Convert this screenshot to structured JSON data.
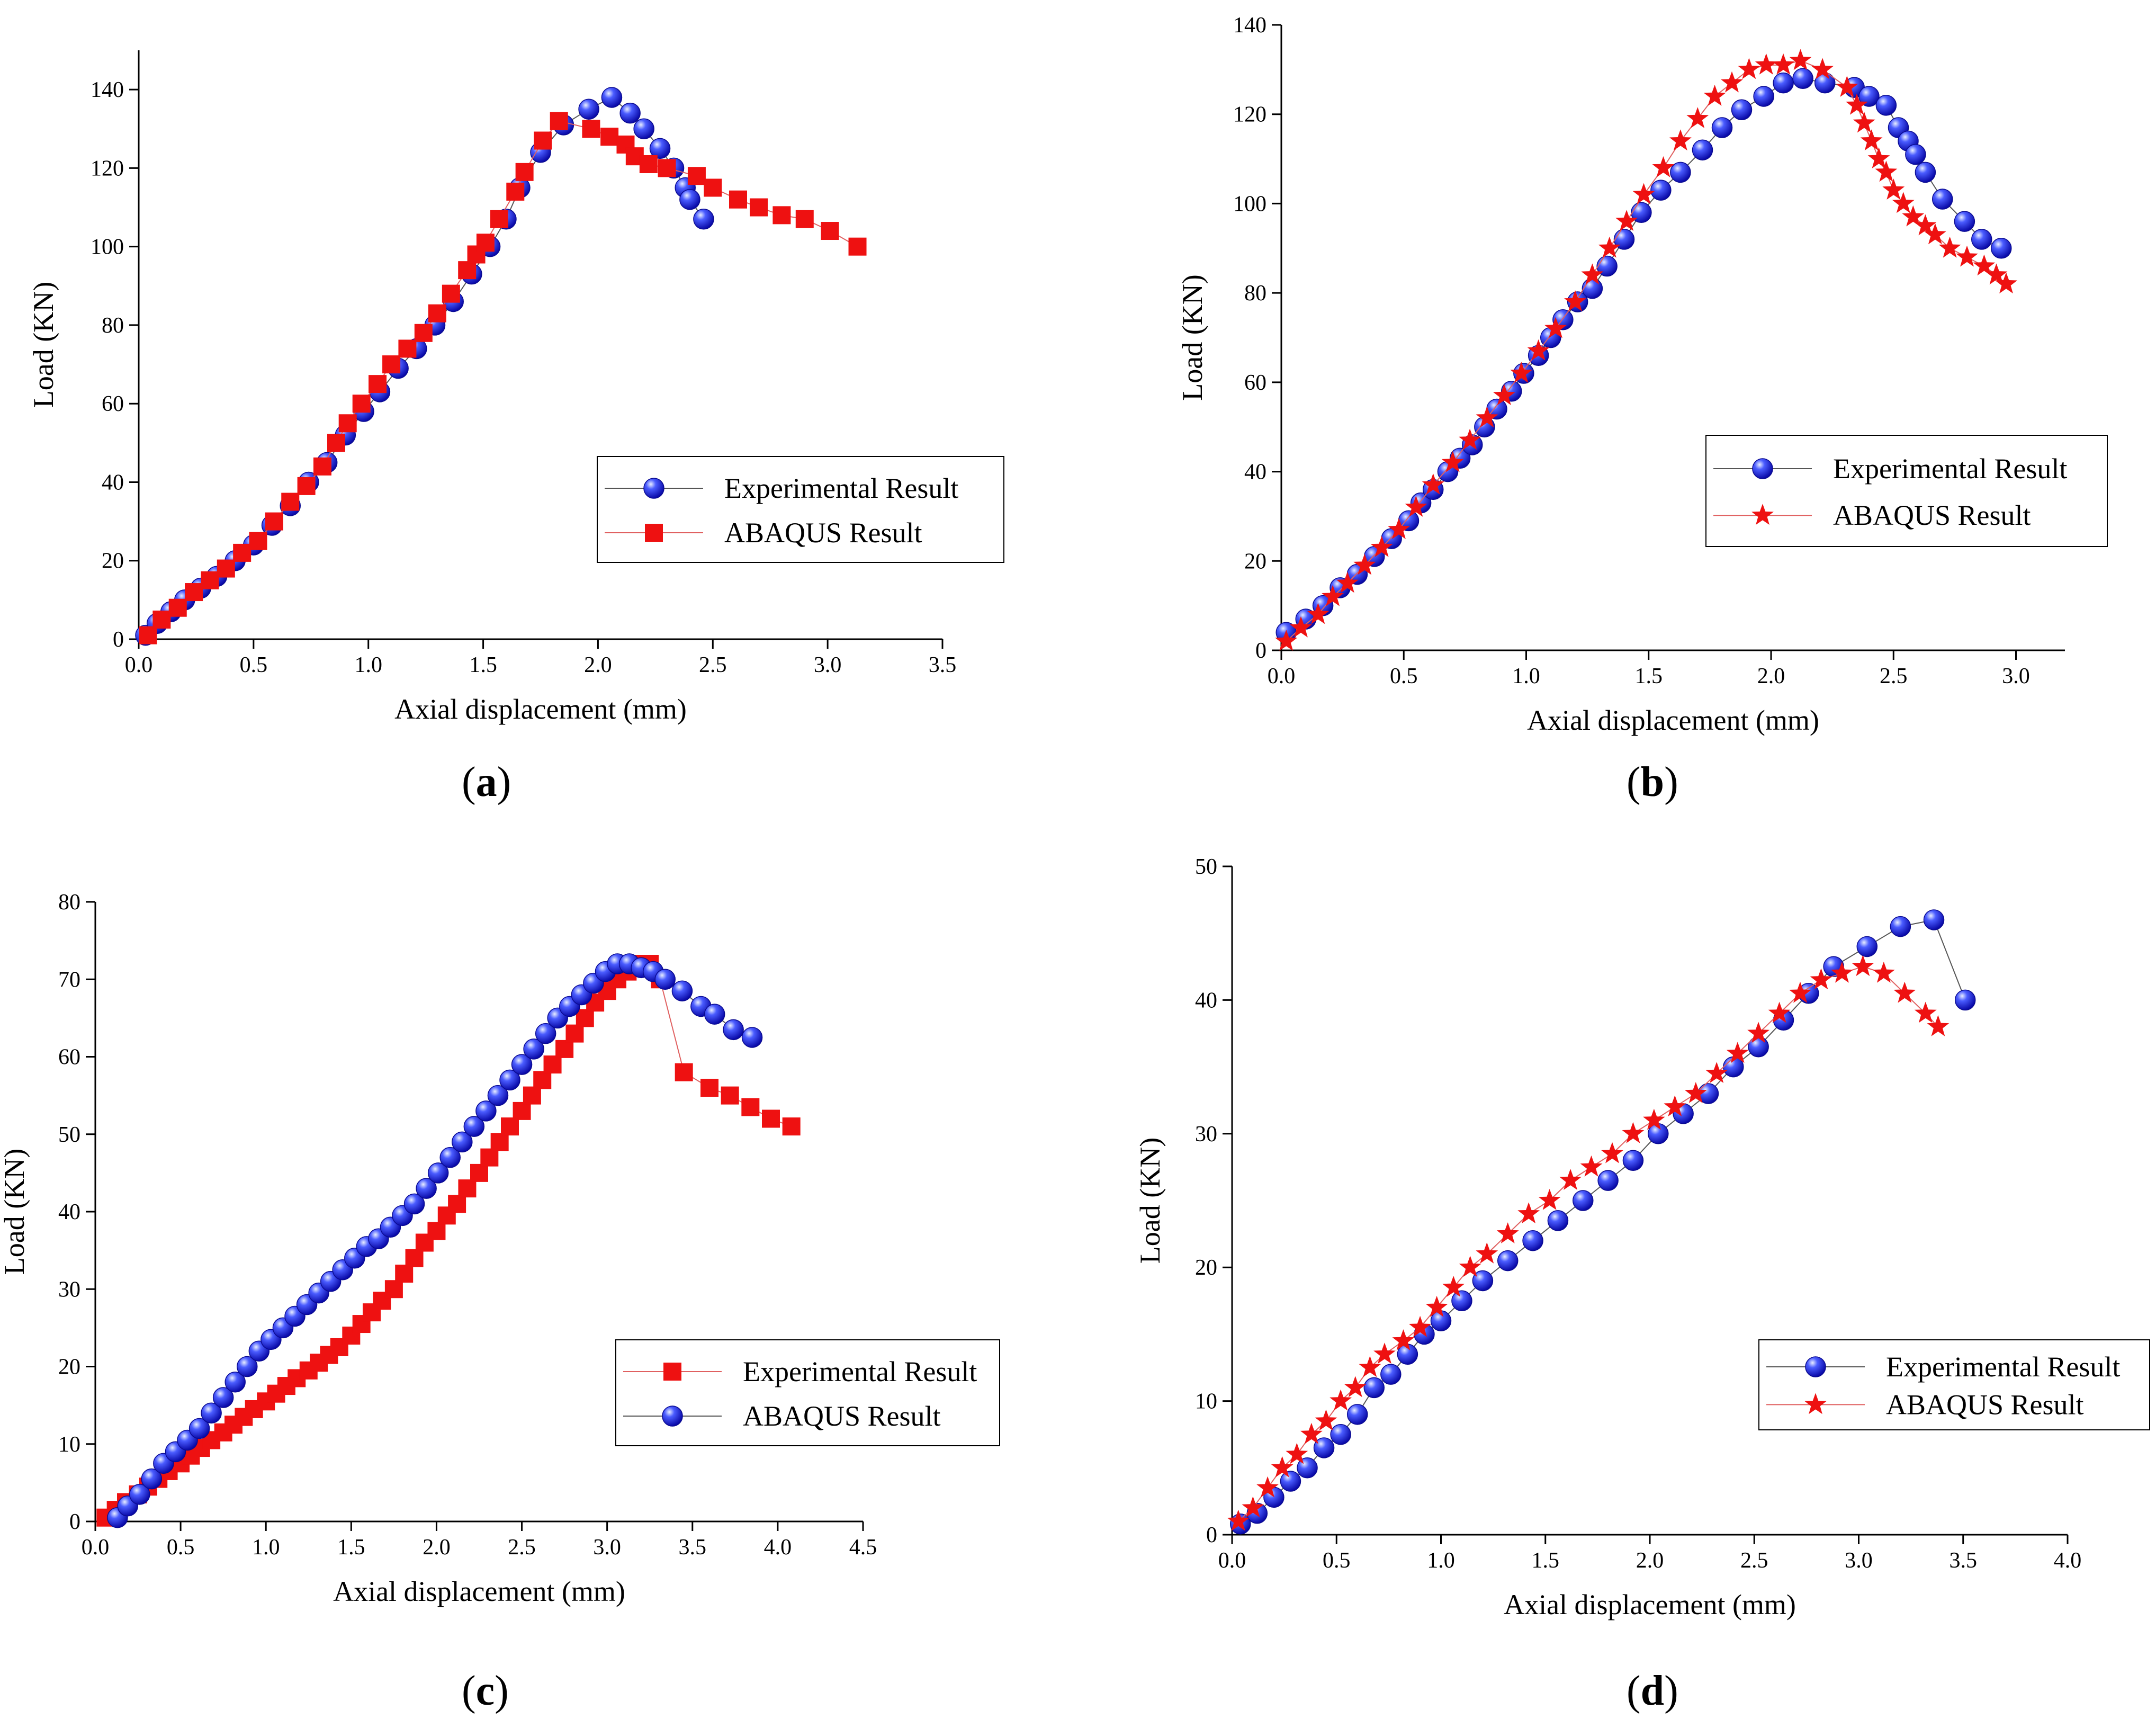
{
  "captions": [
    "a",
    "b",
    "c",
    "d"
  ],
  "chart_data": [
    {
      "type": "scatter",
      "panel": "a",
      "title": "",
      "xlabel": "Axial displacement (mm)",
      "ylabel": "Load (KN)",
      "xlim": [
        0,
        3.5
      ],
      "ylim": [
        0,
        150
      ],
      "xticks": [
        "0.0",
        "0.5",
        "1.0",
        "1.5",
        "2.0",
        "2.5",
        "3.0",
        "3.5"
      ],
      "yticks": [
        "0",
        "20",
        "40",
        "60",
        "80",
        "100",
        "120",
        "140"
      ],
      "legend_position": "lower-right",
      "series": [
        {
          "name": "Experimental Result",
          "marker": "sphere",
          "color": "#1a1aee",
          "x": [
            0.03,
            0.08,
            0.14,
            0.2,
            0.27,
            0.34,
            0.42,
            0.5,
            0.58,
            0.66,
            0.74,
            0.82,
            0.9,
            0.98,
            1.05,
            1.13,
            1.21,
            1.29,
            1.37,
            1.45,
            1.53,
            1.6,
            1.66,
            1.75,
            1.85,
            1.96,
            2.06,
            2.14,
            2.2,
            2.27,
            2.33,
            2.38,
            2.4,
            2.46
          ],
          "y": [
            1,
            4,
            7,
            10,
            13,
            16,
            20,
            24,
            29,
            34,
            40,
            45,
            52,
            58,
            63,
            69,
            74,
            80,
            86,
            93,
            100,
            107,
            115,
            124,
            131,
            135,
            138,
            134,
            130,
            125,
            120,
            115,
            112,
            107
          ]
        },
        {
          "name": "ABAQUS Result",
          "marker": "square",
          "color": "#ee1111",
          "x": [
            0.04,
            0.1,
            0.17,
            0.24,
            0.31,
            0.38,
            0.45,
            0.52,
            0.59,
            0.66,
            0.73,
            0.8,
            0.86,
            0.91,
            0.97,
            1.04,
            1.1,
            1.17,
            1.24,
            1.3,
            1.36,
            1.43,
            1.47,
            1.51,
            1.57,
            1.64,
            1.68,
            1.76,
            1.83,
            1.97,
            2.05,
            2.12,
            2.16,
            2.22,
            2.3,
            2.43,
            2.5,
            2.61,
            2.7,
            2.8,
            2.9,
            3.01,
            3.13
          ],
          "y": [
            1,
            5,
            8,
            12,
            15,
            18,
            22,
            25,
            30,
            35,
            39,
            44,
            50,
            55,
            60,
            65,
            70,
            74,
            78,
            83,
            88,
            94,
            98,
            101,
            107,
            114,
            119,
            127,
            132,
            130,
            128,
            126,
            123,
            121,
            120,
            118,
            115,
            112,
            110,
            108,
            107,
            104,
            100
          ]
        }
      ]
    },
    {
      "type": "scatter",
      "panel": "b",
      "title": "",
      "xlabel": "Axial displacement (mm)",
      "ylabel": "Load (KN)",
      "xlim": [
        0,
        3.2
      ],
      "ylim": [
        0,
        140
      ],
      "xticks": [
        "0.0",
        "0.5",
        "1.0",
        "1.5",
        "2.0",
        "2.5",
        "3.0"
      ],
      "yticks": [
        "0",
        "20",
        "40",
        "60",
        "80",
        "100",
        "120",
        "140"
      ],
      "legend_position": "lower-right",
      "series": [
        {
          "name": "Experimental Result",
          "marker": "sphere",
          "color": "#1a1aee",
          "x": [
            0.02,
            0.1,
            0.17,
            0.24,
            0.31,
            0.38,
            0.45,
            0.52,
            0.57,
            0.62,
            0.68,
            0.73,
            0.78,
            0.83,
            0.88,
            0.94,
            0.99,
            1.05,
            1.1,
            1.15,
            1.21,
            1.27,
            1.33,
            1.4,
            1.47,
            1.55,
            1.63,
            1.72,
            1.8,
            1.88,
            1.97,
            2.05,
            2.13,
            2.22,
            2.34,
            2.4,
            2.47,
            2.52,
            2.56,
            2.59,
            2.63,
            2.7,
            2.79,
            2.86,
            2.94
          ],
          "y": [
            4,
            7,
            10,
            14,
            17,
            21,
            25,
            29,
            33,
            36,
            40,
            43,
            46,
            50,
            54,
            58,
            62,
            66,
            70,
            74,
            78,
            81,
            86,
            92,
            98,
            103,
            107,
            112,
            117,
            121,
            124,
            127,
            128,
            127,
            126,
            124,
            122,
            117,
            114,
            111,
            107,
            101,
            96,
            92,
            90
          ]
        },
        {
          "name": "ABAQUS Result",
          "marker": "star",
          "color": "#ee1111",
          "x": [
            0.02,
            0.08,
            0.15,
            0.21,
            0.27,
            0.34,
            0.41,
            0.48,
            0.55,
            0.62,
            0.7,
            0.77,
            0.84,
            0.91,
            0.98,
            1.05,
            1.12,
            1.2,
            1.27,
            1.34,
            1.41,
            1.48,
            1.56,
            1.63,
            1.7,
            1.77,
            1.84,
            1.91,
            1.98,
            2.05,
            2.12,
            2.21,
            2.31,
            2.35,
            2.38,
            2.41,
            2.44,
            2.47,
            2.5,
            2.54,
            2.58,
            2.63,
            2.67,
            2.73,
            2.8,
            2.87,
            2.92,
            2.96
          ],
          "y": [
            2,
            5,
            8,
            12,
            15,
            19,
            23,
            27,
            32,
            37,
            42,
            47,
            52,
            57,
            62,
            67,
            72,
            78,
            84,
            90,
            96,
            102,
            108,
            114,
            119,
            124,
            127,
            130,
            131,
            131,
            132,
            130,
            126,
            122,
            118,
            114,
            110,
            107,
            103,
            100,
            97,
            95,
            93,
            90,
            88,
            86,
            84,
            82
          ]
        }
      ]
    },
    {
      "type": "scatter",
      "panel": "c",
      "title": "",
      "xlabel": "Axial displacement (mm)",
      "ylabel": "Load (KN)",
      "xlim": [
        0,
        4.5
      ],
      "ylim": [
        0,
        80
      ],
      "xticks": [
        "0.0",
        "0.5",
        "1.0",
        "1.5",
        "2.0",
        "2.5",
        "3.0",
        "3.5",
        "4.0",
        "4.5"
      ],
      "yticks": [
        "0",
        "10",
        "20",
        "30",
        "40",
        "50",
        "60",
        "70",
        "80"
      ],
      "legend_position": "lower-right",
      "series": [
        {
          "name": "Experimental Result",
          "marker": "square",
          "color": "#ee1111",
          "x": [
            0.06,
            0.12,
            0.18,
            0.25,
            0.31,
            0.37,
            0.43,
            0.5,
            0.56,
            0.62,
            0.68,
            0.75,
            0.81,
            0.87,
            0.93,
            1.0,
            1.06,
            1.12,
            1.18,
            1.25,
            1.31,
            1.37,
            1.43,
            1.5,
            1.56,
            1.62,
            1.68,
            1.75,
            1.81,
            1.87,
            1.93,
            2.0,
            2.06,
            2.12,
            2.18,
            2.25,
            2.31,
            2.37,
            2.43,
            2.5,
            2.56,
            2.62,
            2.68,
            2.75,
            2.81,
            2.87,
            2.93,
            3.0,
            3.06,
            3.12,
            3.18,
            3.25,
            3.31,
            3.45,
            3.6,
            3.72,
            3.84,
            3.96,
            4.08
          ],
          "y": [
            0.5,
            1.5,
            2.5,
            3.5,
            4.5,
            5.5,
            6.5,
            7.5,
            8.5,
            9.5,
            10.5,
            11.5,
            12.5,
            13.5,
            14.5,
            15.5,
            16.5,
            17.5,
            18.5,
            19.5,
            20.5,
            21.5,
            22.5,
            24,
            25.5,
            27,
            28.5,
            30,
            32,
            34,
            36,
            37.5,
            39.5,
            41,
            43,
            45,
            47,
            49,
            51,
            53,
            55,
            57,
            59,
            61,
            63,
            65,
            67,
            68.5,
            70,
            71,
            72,
            72,
            70,
            58,
            56,
            55,
            53.5,
            52,
            51
          ]
        },
        {
          "name": "ABAQUS Result",
          "marker": "sphere",
          "color": "#1a1aee",
          "x": [
            0.13,
            0.19,
            0.26,
            0.33,
            0.4,
            0.47,
            0.54,
            0.61,
            0.68,
            0.75,
            0.82,
            0.89,
            0.96,
            1.03,
            1.1,
            1.17,
            1.24,
            1.31,
            1.38,
            1.45,
            1.52,
            1.59,
            1.66,
            1.73,
            1.8,
            1.87,
            1.94,
            2.01,
            2.08,
            2.15,
            2.22,
            2.29,
            2.36,
            2.43,
            2.5,
            2.57,
            2.64,
            2.71,
            2.78,
            2.85,
            2.92,
            2.99,
            3.06,
            3.13,
            3.2,
            3.27,
            3.34,
            3.44,
            3.55,
            3.63,
            3.74,
            3.85
          ],
          "y": [
            0.5,
            2,
            3.5,
            5.5,
            7.5,
            9,
            10.5,
            12,
            14,
            16,
            18,
            20,
            22,
            23.5,
            25,
            26.5,
            28,
            29.5,
            31,
            32.5,
            34,
            35.5,
            36.5,
            38,
            39.5,
            41,
            43,
            45,
            47,
            49,
            51,
            53,
            55,
            57,
            59,
            61,
            63,
            65,
            66.5,
            68,
            69.5,
            71,
            72,
            72,
            71.5,
            71,
            70,
            68.5,
            66.5,
            65.5,
            63.5,
            62.5
          ]
        }
      ]
    },
    {
      "type": "scatter",
      "panel": "d",
      "title": "",
      "xlabel": "Axial displacement (mm)",
      "ylabel": "Load (KN)",
      "xlim": [
        0,
        4.0
      ],
      "ylim": [
        0,
        50
      ],
      "xticks": [
        "0.0",
        "0.5",
        "1.0",
        "1.5",
        "2.0",
        "2.5",
        "3.0",
        "3.5",
        "4.0"
      ],
      "yticks": [
        "0",
        "10",
        "20",
        "30",
        "40",
        "50"
      ],
      "legend_position": "lower-right",
      "series": [
        {
          "name": "Experimental Result",
          "marker": "sphere",
          "color": "#1a1aee",
          "x": [
            0.04,
            0.12,
            0.2,
            0.28,
            0.36,
            0.44,
            0.52,
            0.6,
            0.68,
            0.76,
            0.84,
            0.92,
            1.0,
            1.1,
            1.2,
            1.32,
            1.44,
            1.56,
            1.68,
            1.8,
            1.92,
            2.04,
            2.16,
            2.28,
            2.4,
            2.52,
            2.64,
            2.76,
            2.88,
            3.04,
            3.2,
            3.36,
            3.51
          ],
          "y": [
            0.8,
            1.6,
            2.8,
            4,
            5,
            6.5,
            7.5,
            9,
            11,
            12,
            13.5,
            15,
            16,
            17.5,
            19,
            20.5,
            22,
            23.5,
            25,
            26.5,
            28,
            30,
            31.5,
            33,
            35,
            36.5,
            38.5,
            40.5,
            42.5,
            44,
            45.5,
            46,
            40
          ]
        },
        {
          "name": "ABAQUS Result",
          "marker": "star",
          "color": "#ee1111",
          "x": [
            0.03,
            0.1,
            0.17,
            0.24,
            0.31,
            0.38,
            0.45,
            0.52,
            0.59,
            0.66,
            0.73,
            0.82,
            0.9,
            0.98,
            1.06,
            1.14,
            1.22,
            1.32,
            1.42,
            1.52,
            1.62,
            1.72,
            1.82,
            1.92,
            2.02,
            2.12,
            2.22,
            2.32,
            2.42,
            2.52,
            2.62,
            2.72,
            2.82,
            2.92,
            3.02,
            3.12,
            3.22,
            3.32,
            3.38
          ],
          "y": [
            1,
            2,
            3.5,
            5,
            6,
            7.5,
            8.5,
            10,
            11,
            12.5,
            13.5,
            14.5,
            15.5,
            17,
            18.5,
            20,
            21,
            22.5,
            24,
            25,
            26.5,
            27.5,
            28.5,
            30,
            31,
            32,
            33,
            34.5,
            36,
            37.5,
            39,
            40.5,
            41.5,
            42,
            42.5,
            42,
            40.5,
            39,
            38
          ]
        }
      ]
    }
  ]
}
